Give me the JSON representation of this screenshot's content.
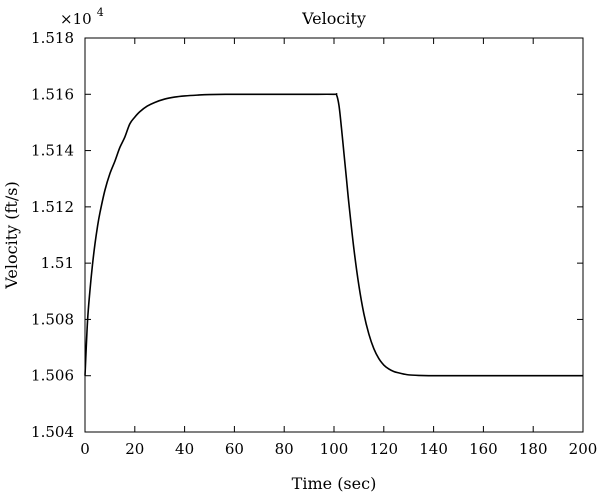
{
  "chart_data": {
    "type": "line",
    "title": "Velocity",
    "xlabel": "Time (sec)",
    "ylabel": "Velocity (ft/s)",
    "y_multiplier": {
      "base": "×10",
      "exponent": "4"
    },
    "xlim": [
      0,
      200
    ],
    "ylim": [
      1.504,
      1.518
    ],
    "x_ticks": [
      0,
      20,
      40,
      60,
      80,
      100,
      120,
      140,
      160,
      180,
      200
    ],
    "x_tick_labels": [
      "0",
      "20",
      "40",
      "60",
      "80",
      "100",
      "120",
      "140",
      "160",
      "180",
      "200"
    ],
    "y_ticks": [
      1.504,
      1.506,
      1.508,
      1.51,
      1.512,
      1.514,
      1.516,
      1.518
    ],
    "y_tick_labels": [
      "1.504",
      "1.506",
      "1.508",
      "1.51",
      "1.512",
      "1.514",
      "1.516",
      "1.518"
    ],
    "grid": false,
    "line_color": "#000000",
    "series": [
      {
        "x": [
          0,
          1,
          2,
          3,
          4,
          5,
          6,
          8,
          10,
          12,
          14,
          16,
          18,
          20,
          22,
          25,
          28,
          32,
          36,
          40,
          45,
          50,
          60,
          70,
          80,
          90,
          100,
          101,
          102,
          103,
          104,
          105,
          106,
          108,
          110,
          112,
          114,
          116,
          118,
          120,
          122,
          124,
          126,
          128,
          130,
          134,
          138,
          142,
          150,
          160,
          170,
          180,
          190,
          200
        ],
        "y": [
          1.506,
          1.50792,
          1.50904,
          1.50994,
          1.51068,
          1.51129,
          1.51179,
          1.51259,
          1.51318,
          1.51362,
          1.51411,
          1.51448,
          1.51495,
          1.51519,
          1.51538,
          1.51558,
          1.51571,
          1.51583,
          1.5159,
          1.51594,
          1.51597,
          1.51599,
          1.516,
          1.516,
          1.516,
          1.516,
          1.516,
          1.51598,
          1.5156,
          1.5148,
          1.5139,
          1.513,
          1.5121,
          1.5105,
          1.5092,
          1.5082,
          1.50748,
          1.50696,
          1.50661,
          1.50638,
          1.50624,
          1.50615,
          1.5061,
          1.50606,
          1.50603,
          1.50601,
          1.506,
          1.506,
          1.506,
          1.506,
          1.506,
          1.506,
          1.506,
          1.506
        ]
      }
    ]
  }
}
